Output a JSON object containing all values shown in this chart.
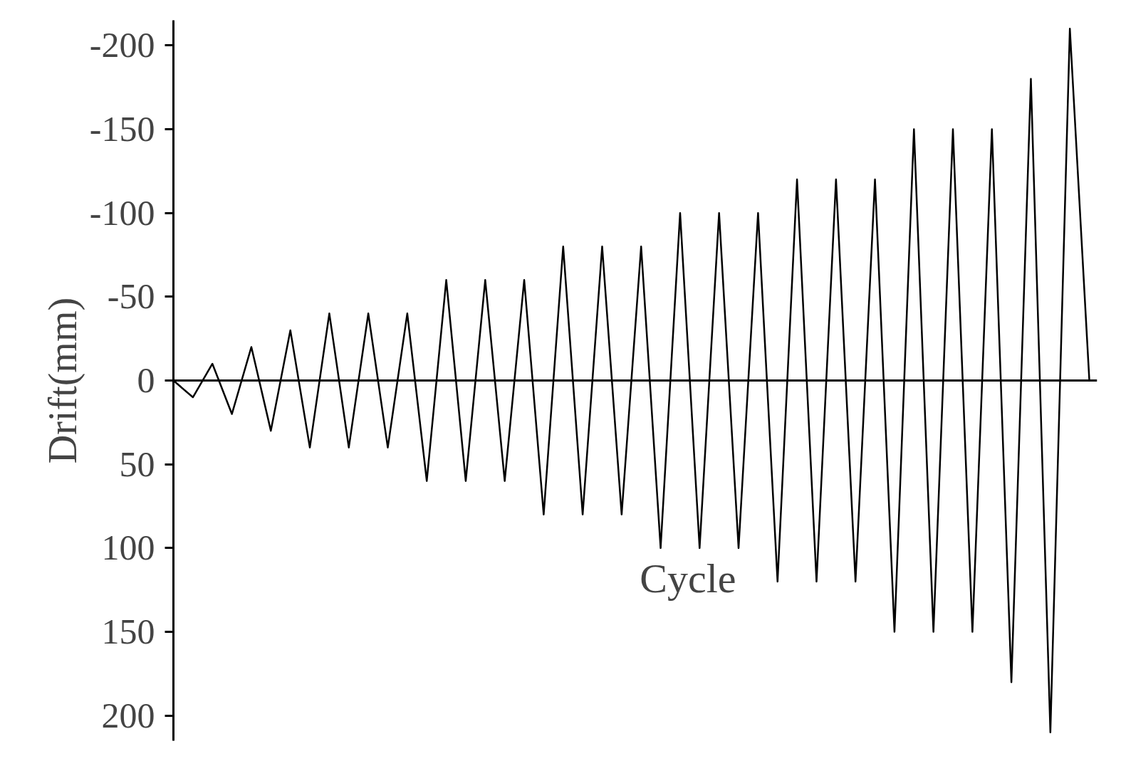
{
  "chart_data": {
    "type": "line",
    "xlabel": "Cycle",
    "ylabel": "Drift(mm)",
    "categories": [
      null,
      null,
      null,
      null,
      null,
      null,
      null,
      null,
      null,
      null,
      null,
      null,
      null,
      null,
      null,
      null,
      null,
      null,
      null,
      null,
      null,
      null,
      null,
      null,
      null,
      null,
      null,
      null,
      null,
      null,
      null,
      null,
      null,
      null,
      null,
      null,
      null,
      null,
      null,
      null,
      null,
      null,
      null,
      null,
      null,
      null,
      null,
      null
    ],
    "series": [
      {
        "color": "#000000",
        "values": [
          0,
          10,
          -10,
          20,
          -20,
          30,
          -30,
          40,
          -40,
          40,
          -40,
          40,
          -40,
          60,
          -60,
          60,
          -60,
          60,
          -60,
          80,
          -80,
          80,
          -80,
          80,
          -80,
          100,
          -100,
          100,
          -100,
          100,
          -100,
          120,
          -120,
          120,
          -120,
          120,
          -120,
          150,
          -150,
          150,
          -150,
          150,
          -150,
          180,
          -180,
          210,
          -210,
          0
        ]
      }
    ],
    "ylim": [
      215,
      -215
    ],
    "yticks": [
      -200,
      -150,
      -100,
      -50,
      0,
      50,
      100,
      150,
      200
    ],
    "tick_labels": "y",
    "marker": "none",
    "line_style": "solid"
  }
}
